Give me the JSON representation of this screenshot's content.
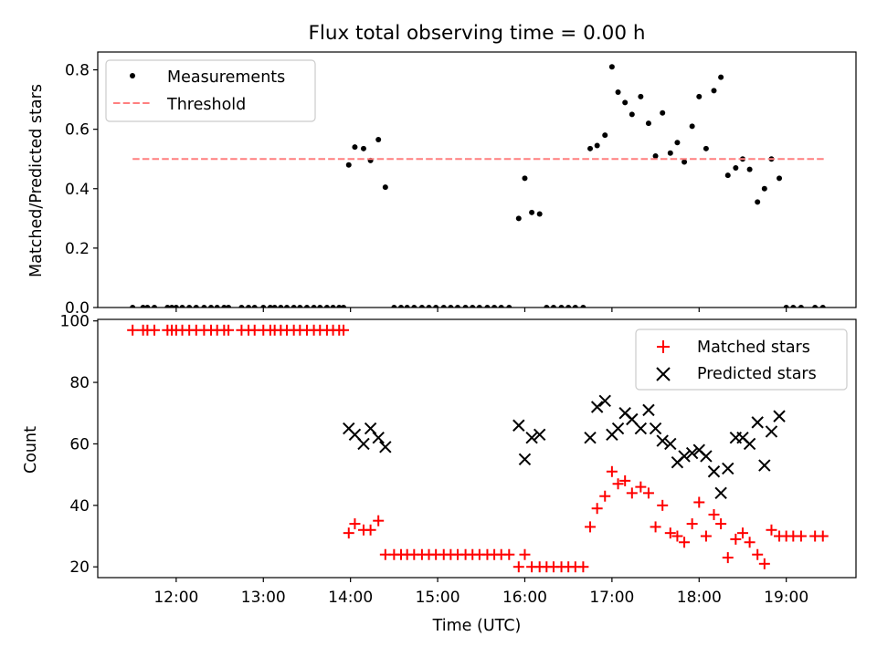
{
  "figure": {
    "title": "Flux total observing time = 0.00 h"
  },
  "chart_data": [
    {
      "type": "scatter",
      "ylabel": "Matched/Predicted stars",
      "xlim": [
        11.1,
        19.8
      ],
      "ylim": [
        0,
        0.86
      ],
      "yticks": [
        0.0,
        0.2,
        0.4,
        0.6,
        0.8
      ],
      "ytick_labels": [
        "0.0",
        "0.2",
        "0.4",
        "0.6",
        "0.8"
      ],
      "xticks": [
        12,
        13,
        14,
        15,
        16,
        17,
        18,
        19
      ],
      "grid": false,
      "legend": {
        "placement": "top-left",
        "entries": [
          "Measurements",
          "Threshold"
        ]
      },
      "series": [
        {
          "name": "Measurements",
          "color": "#000000",
          "marker": "dot",
          "x": [
            11.5,
            11.62,
            11.67,
            11.75,
            11.9,
            11.95,
            12.0,
            12.07,
            12.15,
            12.23,
            12.32,
            12.4,
            12.47,
            12.55,
            12.6,
            12.75,
            12.83,
            12.9,
            13.0,
            13.08,
            13.13,
            13.2,
            13.27,
            13.35,
            13.42,
            13.5,
            13.58,
            13.65,
            13.73,
            13.8,
            13.87,
            13.92,
            13.98,
            14.05,
            14.15,
            14.23,
            14.32,
            14.4,
            14.5,
            14.58,
            14.65,
            14.73,
            14.82,
            14.9,
            14.98,
            15.07,
            15.15,
            15.23,
            15.32,
            15.4,
            15.48,
            15.57,
            15.65,
            15.73,
            15.82,
            15.93,
            16.0,
            16.08,
            16.17,
            16.25,
            16.33,
            16.42,
            16.5,
            16.58,
            16.67,
            16.75,
            16.83,
            16.92,
            17.0,
            17.07,
            17.15,
            17.23,
            17.33,
            17.42,
            17.5,
            17.58,
            17.67,
            17.75,
            17.83,
            17.92,
            18.0,
            18.08,
            18.17,
            18.25,
            18.33,
            18.42,
            18.5,
            18.58,
            18.67,
            18.75,
            18.83,
            18.92,
            19.0,
            19.08,
            19.17,
            19.33,
            19.42
          ],
          "y": [
            0,
            0,
            0,
            0,
            0,
            0,
            0,
            0,
            0,
            0,
            0,
            0,
            0,
            0,
            0,
            0,
            0,
            0,
            0,
            0,
            0,
            0,
            0,
            0,
            0,
            0,
            0,
            0,
            0,
            0,
            0,
            0,
            0.48,
            0.54,
            0.535,
            0.495,
            0.565,
            0.405,
            0,
            0,
            0,
            0,
            0,
            0,
            0,
            0,
            0,
            0,
            0,
            0,
            0,
            0,
            0,
            0,
            0,
            0.3,
            0.435,
            0.32,
            0.315,
            0,
            0,
            0,
            0,
            0,
            0,
            0.535,
            0.545,
            0.58,
            0.81,
            0.725,
            0.69,
            0.65,
            0.71,
            0.62,
            0.51,
            0.655,
            0.52,
            0.555,
            0.49,
            0.61,
            0.71,
            0.535,
            0.73,
            0.775,
            0.445,
            0.47,
            0.5,
            0.465,
            0.355,
            0.4,
            0.5,
            0.435,
            0,
            0,
            0,
            0,
            0
          ]
        },
        {
          "name": "Threshold",
          "color": "#ff7f7f",
          "style": "dashed",
          "x": [
            11.5,
            19.45
          ],
          "y": [
            0.5,
            0.5
          ]
        }
      ]
    },
    {
      "type": "scatter",
      "xlabel": "Time (UTC)",
      "ylabel": "Count",
      "xlim": [
        11.1,
        19.8
      ],
      "ylim": [
        16.5,
        100.5
      ],
      "yticks": [
        20,
        40,
        60,
        80,
        100
      ],
      "ytick_labels": [
        "20",
        "40",
        "60",
        "80",
        "100"
      ],
      "xticks": [
        12,
        13,
        14,
        15,
        16,
        17,
        18,
        19
      ],
      "xtick_labels": [
        "12:00",
        "13:00",
        "14:00",
        "15:00",
        "16:00",
        "17:00",
        "18:00",
        "19:00"
      ],
      "grid": false,
      "legend": {
        "placement": "top-right",
        "entries": [
          "Matched stars",
          "Predicted stars"
        ]
      },
      "series": [
        {
          "name": "Matched stars",
          "color": "#ff0000",
          "marker": "plus",
          "x": [
            11.5,
            11.62,
            11.67,
            11.75,
            11.9,
            11.95,
            12.0,
            12.07,
            12.15,
            12.23,
            12.32,
            12.4,
            12.47,
            12.55,
            12.6,
            12.75,
            12.83,
            12.9,
            13.0,
            13.08,
            13.13,
            13.2,
            13.27,
            13.35,
            13.42,
            13.5,
            13.58,
            13.65,
            13.73,
            13.8,
            13.87,
            13.92,
            13.98,
            14.05,
            14.15,
            14.23,
            14.32,
            14.4,
            14.5,
            14.58,
            14.65,
            14.73,
            14.82,
            14.9,
            14.98,
            15.07,
            15.15,
            15.23,
            15.32,
            15.4,
            15.48,
            15.57,
            15.65,
            15.73,
            15.82,
            15.93,
            16.0,
            16.08,
            16.17,
            16.25,
            16.33,
            16.42,
            16.5,
            16.58,
            16.67,
            16.75,
            16.83,
            16.92,
            17.0,
            17.07,
            17.15,
            17.23,
            17.33,
            17.42,
            17.5,
            17.58,
            17.67,
            17.75,
            17.83,
            17.92,
            18.0,
            18.08,
            18.17,
            18.25,
            18.33,
            18.42,
            18.5,
            18.58,
            18.67,
            18.75,
            18.83,
            18.92,
            19.0,
            19.08,
            19.17,
            19.33,
            19.42
          ],
          "y": [
            97,
            97,
            97,
            97,
            97,
            97,
            97,
            97,
            97,
            97,
            97,
            97,
            97,
            97,
            97,
            97,
            97,
            97,
            97,
            97,
            97,
            97,
            97,
            97,
            97,
            97,
            97,
            97,
            97,
            97,
            97,
            97,
            31,
            34,
            32,
            32,
            35,
            24,
            24,
            24,
            24,
            24,
            24,
            24,
            24,
            24,
            24,
            24,
            24,
            24,
            24,
            24,
            24,
            24,
            24,
            20,
            24,
            20,
            20,
            20,
            20,
            20,
            20,
            20,
            20,
            33,
            39,
            43,
            51,
            47,
            48,
            44,
            46,
            44,
            33,
            40,
            31,
            30,
            28,
            34,
            41,
            30,
            37,
            34,
            23,
            29,
            31,
            28,
            24,
            21,
            32,
            30,
            30,
            30,
            30,
            30,
            30
          ]
        },
        {
          "name": "Predicted stars",
          "color": "#000000",
          "marker": "x",
          "x": [
            13.98,
            14.05,
            14.15,
            14.23,
            14.32,
            14.4,
            15.93,
            16.0,
            16.08,
            16.17,
            16.75,
            16.83,
            16.92,
            17.0,
            17.07,
            17.15,
            17.23,
            17.33,
            17.42,
            17.5,
            17.58,
            17.67,
            17.75,
            17.83,
            17.92,
            18.0,
            18.08,
            18.17,
            18.25,
            18.33,
            18.42,
            18.5,
            18.58,
            18.67,
            18.75,
            18.83,
            18.92
          ],
          "y": [
            65,
            63,
            60,
            65,
            62,
            59,
            66,
            55,
            62,
            63,
            62,
            72,
            74,
            63,
            65,
            70,
            68,
            65,
            71,
            65,
            61,
            60,
            54,
            56,
            57,
            58,
            56,
            51,
            44,
            52,
            62,
            62,
            60,
            67,
            53,
            64,
            69
          ]
        }
      ]
    }
  ]
}
